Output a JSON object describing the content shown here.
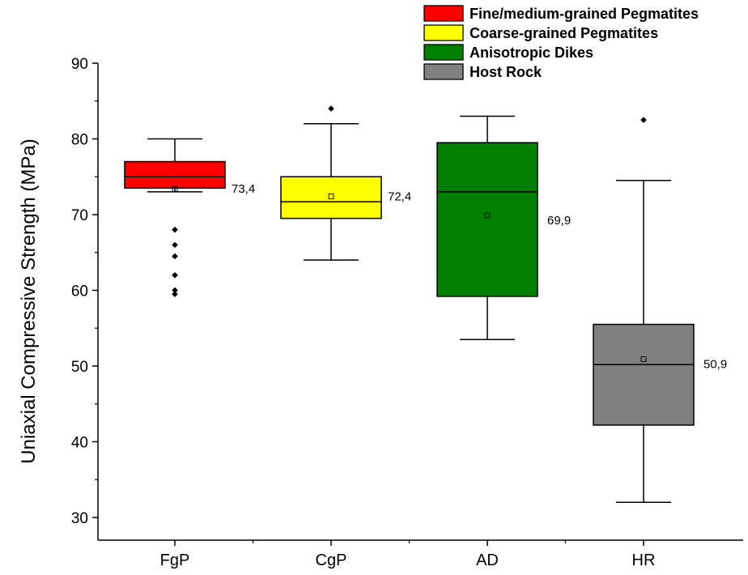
{
  "chart_data": {
    "type": "box",
    "xlabel": "",
    "ylabel": "Uniaxial Compressive Strength (MPa)",
    "ylim": [
      27,
      90
    ],
    "yticks": [
      30,
      40,
      50,
      60,
      70,
      80,
      90
    ],
    "categories": [
      "FgP",
      "CgP",
      "AD",
      "HR"
    ],
    "legend_position": "top-right",
    "legend": [
      {
        "label": "Fine/medium-grained Pegmatites",
        "color": "#ff0000"
      },
      {
        "label": "Coarse-grained Pegmatites",
        "color": "#ffff00"
      },
      {
        "label": "Anisotropic Dikes",
        "color": "#008000"
      },
      {
        "label": "Host Rock",
        "color": "#808080"
      }
    ],
    "series": [
      {
        "category": "FgP",
        "color": "#ff0000",
        "whisker_low": 73.0,
        "q1": 73.5,
        "median": 75.0,
        "q3": 77.0,
        "whisker_high": 80.0,
        "mean": 73.4,
        "mean_label": "73,4",
        "outliers": [
          68.0,
          66.0,
          64.5,
          62.0,
          60.0,
          59.5
        ]
      },
      {
        "category": "CgP",
        "color": "#ffff00",
        "whisker_low": 64.0,
        "q1": 69.5,
        "median": 71.7,
        "q3": 75.0,
        "whisker_high": 82.0,
        "mean": 72.4,
        "mean_label": "72,4",
        "outliers": [
          84.0
        ]
      },
      {
        "category": "AD",
        "color": "#008000",
        "whisker_low": 53.5,
        "q1": 59.2,
        "median": 73.0,
        "q3": 79.5,
        "whisker_high": 83.0,
        "mean": 69.9,
        "mean_label": "69,9",
        "outliers": []
      },
      {
        "category": "HR",
        "color": "#808080",
        "whisker_low": 32.0,
        "q1": 42.2,
        "median": 50.2,
        "q3": 55.5,
        "whisker_high": 74.5,
        "mean": 50.9,
        "mean_label": "50,9",
        "outliers": [
          82.5
        ]
      }
    ]
  }
}
